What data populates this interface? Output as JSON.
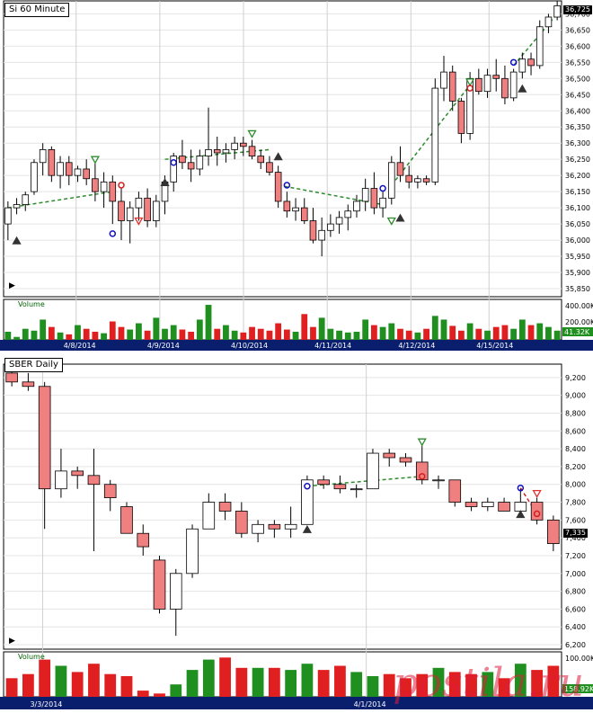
{
  "colors": {
    "up_bar": "#ffffff",
    "down_bar": "#f08080",
    "axis_band": "#0a1e6e",
    "vol_up": "#1f8f1f",
    "vol_down": "#e02020",
    "trend": "#2e8b2e"
  },
  "chart_data": [
    {
      "type": "candlestick",
      "title": "Si 60 Minute",
      "y_ticks": [
        "35,850",
        "35,900",
        "35,950",
        "36,000",
        "36,050",
        "36,100",
        "36,150",
        "36,200",
        "36,250",
        "36,300",
        "36,350",
        "36,400",
        "36,450",
        "36,500",
        "36,550",
        "36,600",
        "36,650",
        "36,700"
      ],
      "last_price": "36,725",
      "x_labels": [
        "4/8/2014",
        "4/9/2014",
        "4/10/2014",
        "4/11/2014",
        "4/12/2014",
        "4/15/2014"
      ],
      "volume_label": "Volume",
      "volume_ticks": [
        "400.00K",
        "200.00K"
      ],
      "last_volume": "41.32K",
      "ylim": [
        35825,
        36740
      ],
      "candles": [
        [
          36050,
          36120,
          36000,
          36100
        ],
        [
          36100,
          36130,
          36080,
          36110
        ],
        [
          36110,
          36150,
          36090,
          36140
        ],
        [
          36150,
          36250,
          36140,
          36240
        ],
        [
          36240,
          36300,
          36200,
          36280
        ],
        [
          36280,
          36290,
          36180,
          36200
        ],
        [
          36200,
          36260,
          36160,
          36240
        ],
        [
          36240,
          36260,
          36170,
          36200
        ],
        [
          36200,
          36230,
          36180,
          36220
        ],
        [
          36220,
          36250,
          36170,
          36190
        ],
        [
          36190,
          36240,
          36120,
          36150
        ],
        [
          36150,
          36210,
          36100,
          36180
        ],
        [
          36180,
          36200,
          36050,
          36120
        ],
        [
          36120,
          36160,
          36000,
          36060
        ],
        [
          36060,
          36120,
          35990,
          36100
        ],
        [
          36100,
          36150,
          36060,
          36130
        ],
        [
          36130,
          36160,
          36040,
          36060
        ],
        [
          36060,
          36140,
          36040,
          36120
        ],
        [
          36120,
          36200,
          36080,
          36180
        ],
        [
          36180,
          36270,
          36150,
          36260
        ],
        [
          36260,
          36310,
          36220,
          36240
        ],
        [
          36240,
          36280,
          36180,
          36220
        ],
        [
          36220,
          36280,
          36200,
          36260
        ],
        [
          36260,
          36410,
          36230,
          36280
        ],
        [
          36280,
          36320,
          36230,
          36270
        ],
        [
          36270,
          36300,
          36240,
          36280
        ],
        [
          36280,
          36320,
          36250,
          36300
        ],
        [
          36300,
          36320,
          36260,
          36290
        ],
        [
          36290,
          36310,
          36250,
          36260
        ],
        [
          36260,
          36280,
          36220,
          36240
        ],
        [
          36240,
          36260,
          36200,
          36210
        ],
        [
          36210,
          36230,
          36100,
          36120
        ],
        [
          36120,
          36150,
          36070,
          36090
        ],
        [
          36090,
          36130,
          36060,
          36100
        ],
        [
          36100,
          36130,
          36050,
          36060
        ],
        [
          36060,
          36100,
          35990,
          36000
        ],
        [
          36000,
          36070,
          35950,
          36030
        ],
        [
          36030,
          36080,
          36010,
          36050
        ],
        [
          36050,
          36090,
          36020,
          36070
        ],
        [
          36070,
          36110,
          36030,
          36090
        ],
        [
          36090,
          36140,
          36070,
          36120
        ],
        [
          36120,
          36190,
          36090,
          36160
        ],
        [
          36160,
          36210,
          36080,
          36100
        ],
        [
          36100,
          36150,
          36070,
          36130
        ],
        [
          36130,
          36260,
          36110,
          36240
        ],
        [
          36240,
          36290,
          36180,
          36200
        ],
        [
          36200,
          36230,
          36160,
          36180
        ],
        [
          36180,
          36200,
          36160,
          36190
        ],
        [
          36190,
          36200,
          36170,
          36180
        ],
        [
          36180,
          36500,
          36170,
          36470
        ],
        [
          36470,
          36570,
          36430,
          36520
        ],
        [
          36520,
          36540,
          36400,
          36430
        ],
        [
          36430,
          36440,
          36300,
          36330
        ],
        [
          36330,
          36520,
          36310,
          36500
        ],
        [
          36500,
          36530,
          36450,
          36460
        ],
        [
          36460,
          36530,
          36440,
          36510
        ],
        [
          36510,
          36560,
          36460,
          36500
        ],
        [
          36500,
          36540,
          36420,
          36440
        ],
        [
          36440,
          36530,
          36430,
          36520
        ],
        [
          36520,
          36580,
          36500,
          36560
        ],
        [
          36560,
          36580,
          36510,
          36540
        ],
        [
          36540,
          36680,
          36530,
          36660
        ],
        [
          36660,
          36700,
          36640,
          36690
        ],
        [
          36690,
          36740,
          36680,
          36725
        ]
      ],
      "volume": [
        0.22,
        0.08,
        0.3,
        0.25,
        0.55,
        0.35,
        0.2,
        0.15,
        0.4,
        0.3,
        0.22,
        0.18,
        0.5,
        0.35,
        0.28,
        0.45,
        0.25,
        0.6,
        0.3,
        0.4,
        0.28,
        0.22,
        0.55,
        0.95,
        0.3,
        0.4,
        0.25,
        0.2,
        0.35,
        0.3,
        0.25,
        0.45,
        0.28,
        0.22,
        0.7,
        0.35,
        0.6,
        0.3,
        0.25,
        0.2,
        0.22,
        0.55,
        0.4,
        0.35,
        0.45,
        0.3,
        0.25,
        0.2,
        0.3,
        0.65,
        0.55,
        0.38,
        0.25,
        0.45,
        0.3,
        0.25,
        0.35,
        0.4,
        0.3,
        0.55,
        0.4,
        0.45,
        0.35,
        0.25
      ],
      "markers": [
        {
          "i": 1,
          "kind": "tri-down-black",
          "p": 36000
        },
        {
          "i": 10,
          "kind": "tri-up-green",
          "p": 36250
        },
        {
          "i": 12,
          "kind": "circle-blue",
          "p": 36020
        },
        {
          "i": 13,
          "kind": "circle-red",
          "p": 36170
        },
        {
          "i": 15,
          "kind": "tri-up-red",
          "p": 36060
        },
        {
          "i": 18,
          "kind": "tri-down-black",
          "p": 36180
        },
        {
          "i": 19,
          "kind": "circle-blue",
          "p": 36240
        },
        {
          "i": 28,
          "kind": "tri-up-green",
          "p": 36330
        },
        {
          "i": 31,
          "kind": "tri-down-black",
          "p": 36260
        },
        {
          "i": 32,
          "kind": "circle-blue",
          "p": 36170
        },
        {
          "i": 43,
          "kind": "circle-blue",
          "p": 36160
        },
        {
          "i": 44,
          "kind": "tri-up-green",
          "p": 36060
        },
        {
          "i": 45,
          "kind": "tri-down-black",
          "p": 36070
        },
        {
          "i": 53,
          "kind": "tri-up-green",
          "p": 36490
        },
        {
          "i": 53,
          "kind": "circle-red",
          "p": 36470
        },
        {
          "i": 58,
          "kind": "circle-blue",
          "p": 36550
        },
        {
          "i": 59,
          "kind": "tri-down-black",
          "p": 36470
        }
      ],
      "trendlines": [
        [
          [
            0,
            36100
          ],
          [
            12,
            36150
          ]
        ],
        [
          [
            18,
            36250
          ],
          [
            30,
            36280
          ]
        ],
        [
          [
            31,
            36170
          ],
          [
            43,
            36110
          ]
        ],
        [
          [
            44,
            36170
          ],
          [
            53,
            36480
          ]
        ],
        [
          [
            58,
            36540
          ],
          [
            63,
            36700
          ]
        ]
      ]
    },
    {
      "type": "candlestick",
      "title": "SBER Daily",
      "y_ticks": [
        "6,200",
        "6,400",
        "6,600",
        "6,800",
        "7,000",
        "7,200",
        "7,400",
        "7,600",
        "7,800",
        "8,000",
        "8,200",
        "8,400",
        "8,600",
        "8,800",
        "9,000",
        "9,200"
      ],
      "last_price": "7,335",
      "x_labels": [
        "3/3/2014",
        "4/1/2014"
      ],
      "volume_label": "Volume",
      "volume_ticks": [
        "100.00K"
      ],
      "last_volume": "158.92K",
      "ylim": [
        6150,
        9350
      ],
      "candles": [
        [
          9250,
          9300,
          9100,
          9150
        ],
        [
          9150,
          9250,
          9050,
          9100
        ],
        [
          9100,
          9150,
          7500,
          7950
        ],
        [
          7950,
          8400,
          7850,
          8150
        ],
        [
          8150,
          8200,
          7950,
          8100
        ],
        [
          8100,
          8400,
          7250,
          8000
        ],
        [
          8000,
          8050,
          7700,
          7850
        ],
        [
          7750,
          7800,
          7450,
          7450
        ],
        [
          7450,
          7550,
          7200,
          7300
        ],
        [
          7150,
          7200,
          6550,
          6600
        ],
        [
          6600,
          7050,
          6300,
          7000
        ],
        [
          7000,
          7550,
          6950,
          7500
        ],
        [
          7500,
          7900,
          7500,
          7800
        ],
        [
          7800,
          7900,
          7600,
          7700
        ],
        [
          7700,
          7800,
          7400,
          7450
        ],
        [
          7450,
          7600,
          7350,
          7550
        ],
        [
          7550,
          7600,
          7400,
          7500
        ],
        [
          7500,
          7750,
          7400,
          7550
        ],
        [
          7550,
          8100,
          7550,
          8050
        ],
        [
          8050,
          8100,
          7950,
          8000
        ],
        [
          8000,
          8100,
          7900,
          7950
        ],
        [
          7950,
          8000,
          7850,
          7950
        ],
        [
          7950,
          8400,
          7950,
          8350
        ],
        [
          8350,
          8400,
          8200,
          8300
        ],
        [
          8300,
          8350,
          8200,
          8250
        ],
        [
          8250,
          8450,
          8000,
          8050
        ],
        [
          8050,
          8100,
          7950,
          8050
        ],
        [
          8050,
          8050,
          7750,
          7800
        ],
        [
          7800,
          7850,
          7700,
          7750
        ],
        [
          7750,
          7850,
          7700,
          7800
        ],
        [
          7800,
          7850,
          7700,
          7700
        ],
        [
          7700,
          7950,
          7700,
          7800
        ],
        [
          7800,
          7850,
          7550,
          7600
        ],
        [
          7600,
          7650,
          7250,
          7335
        ]
      ],
      "volume": [
        0.45,
        0.55,
        0.9,
        0.75,
        0.6,
        0.8,
        0.55,
        0.5,
        0.15,
        0.08,
        0.3,
        0.65,
        0.9,
        0.95,
        0.7,
        0.7,
        0.7,
        0.65,
        0.8,
        0.65,
        0.75,
        0.6,
        0.5,
        0.55,
        0.45,
        0.55,
        0.7,
        0.6,
        0.55,
        0.6,
        0.45,
        0.8,
        0.65,
        0.75
      ],
      "markers": [
        {
          "i": 18,
          "kind": "tri-down-black",
          "p": 7500
        },
        {
          "i": 18,
          "kind": "circle-blue",
          "p": 7980
        },
        {
          "i": 25,
          "kind": "tri-up-green",
          "p": 8480
        },
        {
          "i": 25,
          "kind": "circle-red",
          "p": 8090
        },
        {
          "i": 31,
          "kind": "circle-blue",
          "p": 7960
        },
        {
          "i": 31,
          "kind": "tri-down-black",
          "p": 7670
        },
        {
          "i": 32,
          "kind": "tri-up-red",
          "p": 7900
        },
        {
          "i": 32,
          "kind": "circle-red",
          "p": 7670
        }
      ],
      "trendlines": [
        [
          [
            18,
            7980
          ],
          [
            25,
            8090
          ]
        ]
      ],
      "red_trendlines": [
        [
          [
            31,
            7960
          ],
          [
            32,
            7670
          ]
        ]
      ]
    }
  ],
  "watermark": "postila.ru"
}
